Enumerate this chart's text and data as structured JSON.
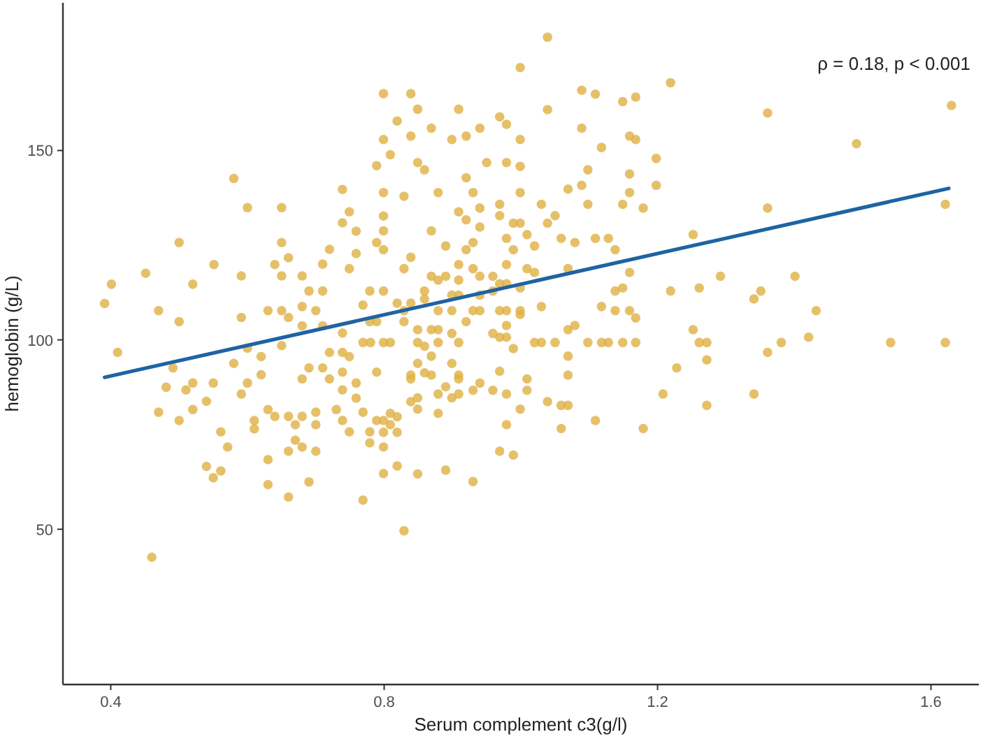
{
  "chart_data": {
    "type": "scatter",
    "xlabel": "Serum complement c3(g/l)",
    "ylabel": "hemoglobin (g/L)",
    "annotations": [
      "ρ  = 0.18, p < 0.001"
    ],
    "xlim": [
      0.33,
      1.67
    ],
    "ylim": [
      9,
      189
    ],
    "xticks": [
      {
        "value": 0.4,
        "label": "0.4"
      },
      {
        "value": 0.8,
        "label": "0.8"
      },
      {
        "value": 1.2,
        "label": "1.2"
      },
      {
        "value": 1.6,
        "label": "1.6"
      }
    ],
    "yticks": [
      50,
      100,
      150
    ],
    "series": [
      {
        "marker": "circle",
        "color": "#e0b044",
        "x": [
          0.391,
          0.401,
          0.41,
          0.451,
          0.47,
          0.5,
          0.5,
          0.47,
          0.46,
          0.52,
          0.491,
          0.481,
          0.51,
          0.52,
          0.52,
          0.5,
          0.54,
          0.55,
          0.551,
          0.58,
          0.561,
          0.571,
          0.54,
          0.55,
          0.561,
          0.591,
          0.591,
          0.58,
          0.591,
          0.6,
          0.6,
          0.6,
          0.62,
          0.62,
          0.61,
          0.61,
          0.63,
          0.63,
          0.63,
          0.65,
          0.65,
          0.65,
          0.64,
          0.66,
          0.63,
          0.65,
          0.66,
          0.65,
          0.64,
          0.66,
          0.66,
          0.67,
          0.67,
          0.68,
          0.66,
          0.68,
          0.68,
          0.69,
          0.68,
          0.68,
          0.69,
          0.68,
          0.7,
          0.7,
          0.7,
          0.69,
          0.7,
          0.71,
          0.72,
          0.71,
          0.71,
          0.71,
          0.72,
          0.72,
          0.73,
          0.739,
          0.749,
          0.739,
          0.759,
          0.759,
          0.749,
          0.739,
          0.739,
          0.749,
          0.739,
          0.739,
          0.759,
          0.749,
          0.739,
          0.759,
          0.769,
          0.769,
          0.779,
          0.779,
          0.769,
          0.779,
          0.779,
          0.769,
          0.789,
          0.789,
          0.799,
          0.799,
          0.799,
          0.789,
          0.799,
          0.799,
          1.039,
          0.999,
          0.839,
          0.849,
          0.819,
          0.839,
          0.869,
          0.899,
          0.909,
          0.92,
          0.94,
          0.969,
          0.979,
          0.999,
          1.089,
          1.109,
          1.149,
          1.168,
          1.219,
          1.039,
          1.089,
          1.118,
          1.159,
          1.168,
          1.198,
          1.198,
          1.159,
          1.159,
          1.149,
          1.179,
          1.098,
          1.089,
          1.069,
          1.098,
          1.03,
          1.039,
          1.05,
          0.999,
          0.999,
          0.979,
          0.95,
          0.92,
          0.93,
          0.879,
          0.859,
          0.849,
          0.809,
          0.799,
          0.829,
          0.909,
          0.92,
          0.94,
          0.969,
          0.94,
          0.969,
          0.989,
          0.999,
          1.009,
          1.02,
          0.989,
          0.979,
          0.93,
          0.92,
          0.89,
          0.869,
          0.839,
          0.829,
          0.799,
          0.799,
          1.059,
          1.079,
          1.109,
          1.128,
          1.138,
          1.159,
          1.149,
          1.138,
          1.219,
          1.069,
          1.009,
          1.02,
          0.999,
          0.979,
          0.979,
          0.959,
          0.94,
          0.93,
          0.909,
          0.909,
          0.89,
          0.879,
          0.869,
          0.859,
          0.859,
          0.899,
          0.909,
          0.94,
          0.959,
          0.969,
          0.969,
          0.979,
          0.999,
          0.999,
          1.03,
          0.94,
          0.93,
          0.899,
          0.879,
          0.92,
          0.899,
          0.909,
          0.869,
          0.879,
          0.849,
          0.829,
          0.829,
          0.839,
          0.819,
          0.799,
          0.789,
          0.799,
          0.809,
          0.78,
          0.849,
          0.859,
          0.879,
          0.869,
          0.849,
          0.859,
          0.839,
          0.839,
          0.869,
          0.899,
          0.909,
          0.909,
          0.94,
          0.959,
          0.969,
          0.979,
          0.989,
          0.979,
          1.02,
          1.03,
          1.05,
          1.098,
          1.118,
          1.128,
          1.149,
          1.168,
          1.168,
          1.159,
          1.138,
          1.118,
          1.069,
          1.079,
          1.069,
          1.069,
          1.059,
          1.069,
          1.039,
          0.999,
          1.009,
          1.009,
          0.979,
          0.969,
          0.959,
          0.93,
          0.909,
          0.899,
          0.89,
          0.879,
          0.879,
          0.849,
          0.839,
          0.849,
          0.809,
          0.819,
          0.799,
          0.809,
          0.789,
          0.819,
          0.799,
          0.819,
          0.849,
          0.89,
          0.93,
          0.969,
          0.989,
          0.979,
          1.059,
          1.109,
          1.179,
          1.208,
          1.228,
          0.829,
          1.361,
          1.63,
          1.491,
          1.361,
          1.621,
          1.252,
          1.292,
          1.261,
          1.401,
          1.341,
          1.351,
          1.432,
          1.252,
          1.261,
          1.272,
          1.381,
          1.421,
          1.541,
          1.621,
          1.361,
          1.272,
          1.341,
          1.272
        ],
        "values": [
          109.6,
          114.7,
          96.7,
          117.6,
          107.7,
          125.7,
          104.8,
          80.9,
          42.6,
          114.7,
          92.6,
          87.5,
          86.8,
          88.6,
          81.6,
          78.7,
          83.8,
          88.6,
          119.9,
          142.6,
          75.7,
          71.7,
          66.6,
          63.6,
          65.4,
          116.9,
          105.9,
          93.8,
          85.7,
          134.9,
          88.6,
          97.8,
          95.6,
          90.8,
          78.7,
          76.5,
          81.6,
          68.4,
          61.8,
          134.9,
          125.7,
          116.9,
          119.9,
          121.7,
          107.7,
          107.7,
          105.9,
          98.5,
          79.8,
          79.8,
          70.6,
          77.6,
          73.5,
          71.7,
          58.5,
          116.9,
          108.8,
          112.9,
          103.7,
          89.7,
          92.6,
          79.8,
          80.9,
          77.6,
          70.6,
          62.5,
          107.7,
          120,
          123.9,
          112.9,
          103.7,
          92.6,
          89.7,
          96.7,
          81.6,
          139.7,
          133.8,
          130.9,
          128.7,
          122.8,
          118.8,
          101.8,
          96.7,
          95.6,
          91.5,
          86.8,
          88.6,
          75.7,
          78.7,
          84.6,
          80.9,
          57.7,
          75.7,
          72.8,
          109.2,
          112.9,
          104.8,
          99.3,
          91.5,
          146,
          165,
          152.9,
          132.7,
          125.7,
          64.7,
          71.7,
          179.9,
          171.9,
          165,
          160.9,
          157.8,
          153.8,
          155.9,
          152.9,
          160.9,
          153.8,
          155.9,
          158.9,
          156.9,
          152.9,
          165.9,
          164.9,
          162.9,
          164.1,
          167.9,
          160.8,
          155.9,
          150.8,
          153.8,
          152.9,
          147.9,
          140.8,
          143.8,
          138.9,
          135.8,
          134.8,
          144.9,
          140.8,
          139.8,
          135.8,
          135.8,
          130.8,
          132.8,
          138.9,
          145.8,
          146.8,
          146.8,
          142.8,
          138.9,
          138.9,
          144.9,
          146.8,
          148.9,
          138.9,
          137.9,
          133.8,
          131.7,
          134.8,
          135.8,
          129.8,
          132.8,
          130.8,
          130.8,
          127.8,
          124.8,
          123.8,
          126.8,
          125.7,
          123.8,
          124.8,
          128.8,
          121.8,
          118.8,
          123.8,
          128.8,
          126.8,
          125.7,
          126.8,
          126.8,
          123.8,
          117.8,
          113.7,
          112.9,
          112.9,
          118.8,
          118.8,
          117.8,
          113.7,
          114.8,
          119.9,
          116.8,
          116.8,
          118.8,
          119.9,
          115.8,
          116.8,
          115.8,
          116.8,
          112.9,
          110.8,
          111.8,
          111.8,
          111.8,
          112.9,
          114.8,
          107.7,
          107.7,
          107.7,
          106.7,
          108.8,
          107.7,
          107.7,
          107.7,
          107.7,
          104.8,
          101.7,
          99.3,
          102.7,
          102.7,
          102.7,
          104.8,
          107.7,
          109.7,
          109.7,
          112.9,
          104.8,
          99.3,
          99.3,
          99.3,
          99.3,
          98.3,
          99.3,
          95.7,
          93.8,
          91.3,
          90.7,
          89.7,
          90.7,
          93.8,
          90.7,
          89.7,
          88.6,
          101.7,
          100.7,
          100.7,
          97.7,
          103.8,
          99.3,
          99.3,
          99.3,
          99.3,
          99.3,
          99.3,
          99.3,
          99.3,
          105.8,
          107.7,
          107.7,
          108.8,
          102.7,
          103.8,
          95.7,
          90.7,
          82.7,
          82.7,
          83.7,
          81.7,
          89.7,
          86.7,
          85.7,
          91.7,
          86.7,
          86.7,
          85.7,
          84.7,
          87.6,
          85.7,
          80.6,
          81.7,
          83.7,
          84.7,
          80.6,
          79.7,
          78.7,
          77.6,
          78.7,
          75.6,
          75.6,
          66.7,
          64.6,
          65.6,
          62.6,
          70.6,
          69.6,
          77.6,
          76.6,
          78.7,
          76.6,
          85.7,
          92.6,
          49.6,
          159.9,
          161.9,
          151.8,
          134.8,
          135.8,
          127.8,
          116.8,
          113.7,
          116.8,
          110.8,
          112.9,
          107.7,
          102.7,
          99.3,
          99.3,
          99.3,
          100.7,
          99.3,
          99.3,
          96.7,
          94.7,
          85.7,
          82.7
        ]
      },
      {
        "type": "line",
        "color": "#1f63a3",
        "x": [
          0.391,
          1.626
        ],
        "values": [
          90.1,
          140.0
        ]
      }
    ]
  }
}
